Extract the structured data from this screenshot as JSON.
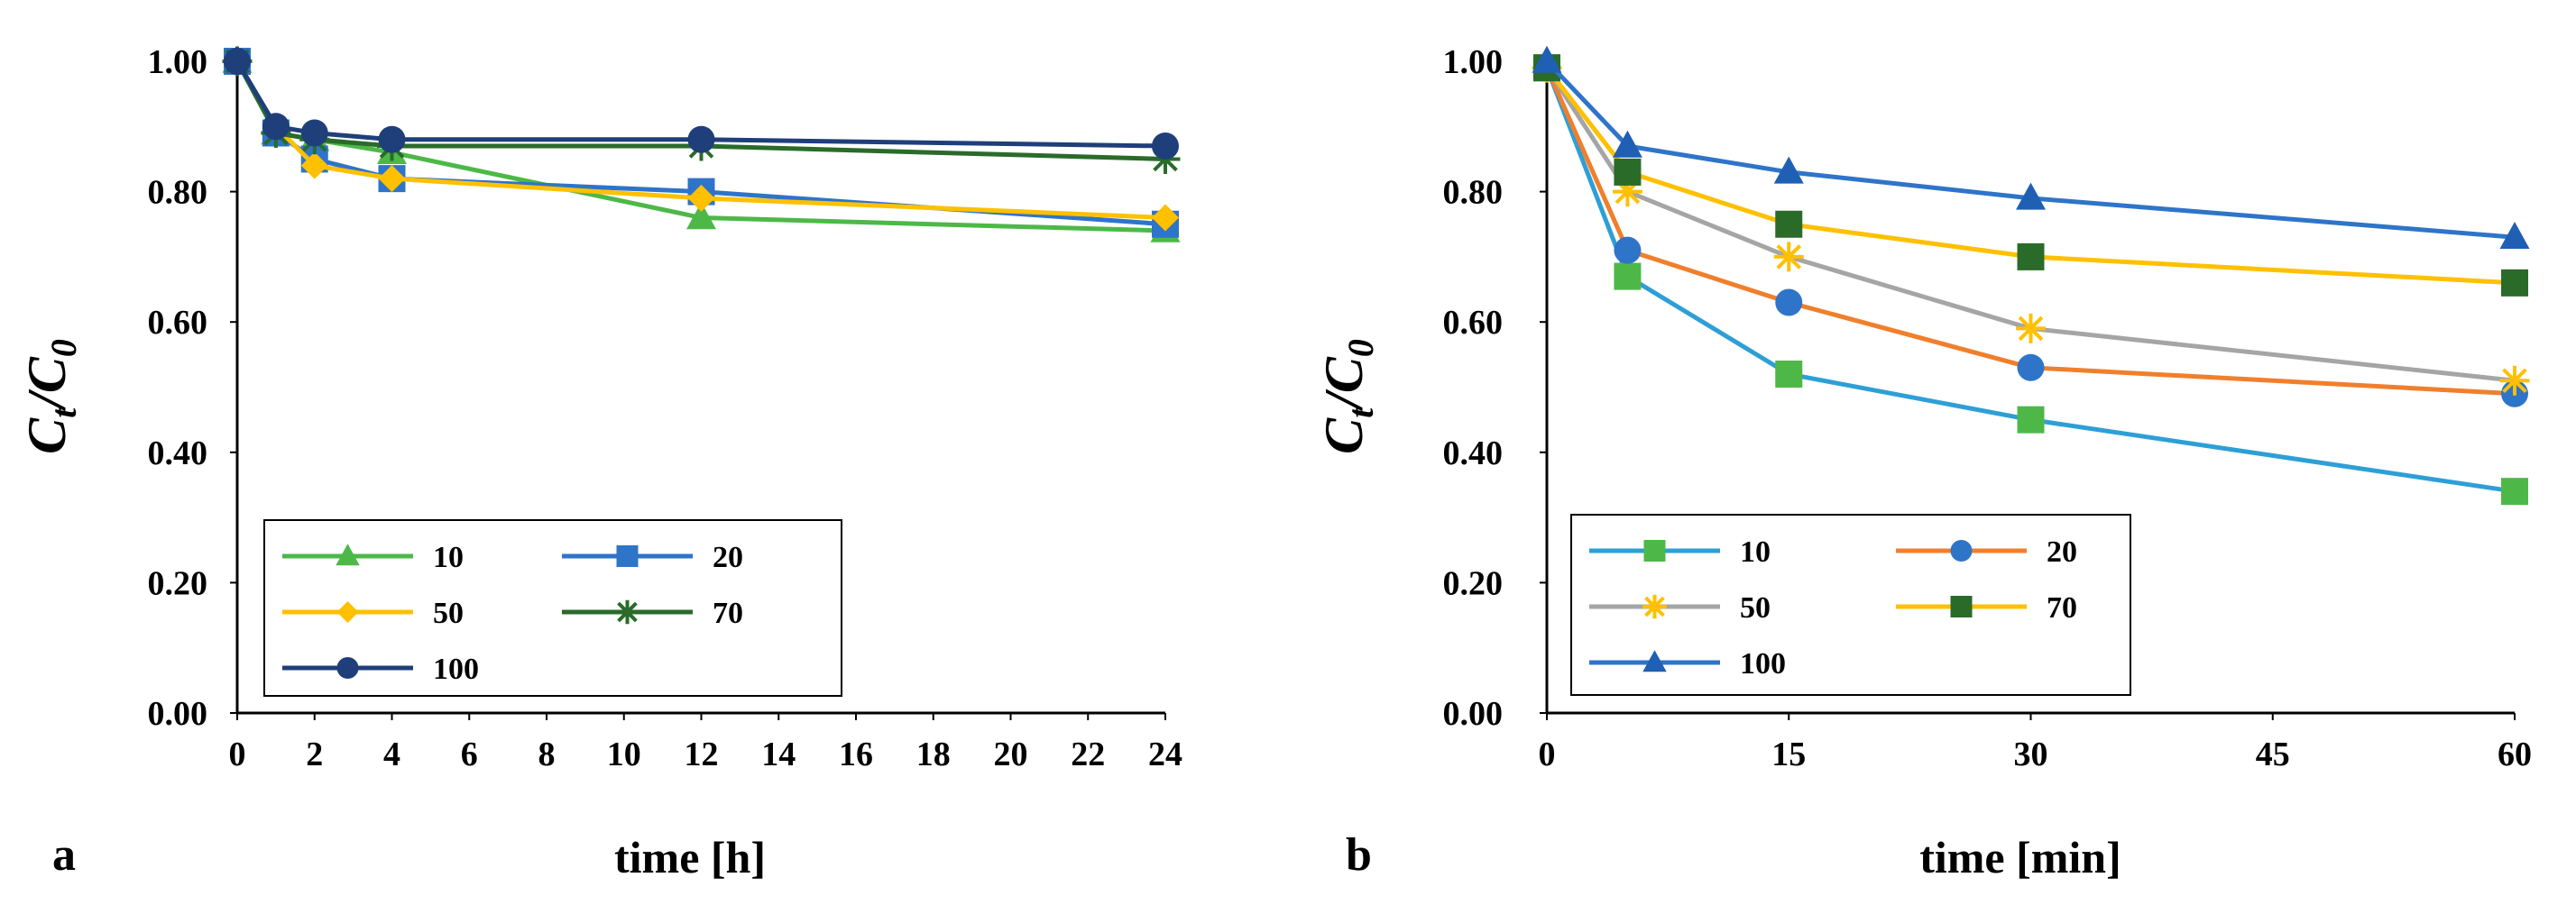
{
  "chart_data": [
    {
      "type": "line",
      "panel_label": "a",
      "xlabel": "time [h]",
      "ylabel_main": "C",
      "ylabel_sub1": "t",
      "ylabel_sep": "/C",
      "ylabel_sub2": "0",
      "xlim": [
        0,
        24
      ],
      "ylim": [
        0,
        1
      ],
      "x_ticks": [
        0,
        2,
        4,
        6,
        8,
        10,
        12,
        14,
        16,
        18,
        20,
        22,
        24
      ],
      "x_tick_labels": [
        "0",
        "2",
        "4",
        "6",
        "8",
        "10",
        "12",
        "14",
        "16",
        "18",
        "20",
        "22",
        "24"
      ],
      "y_ticks": [
        0,
        0.2,
        0.4,
        0.6,
        0.8,
        1.0
      ],
      "y_tick_labels": [
        "0.00",
        "0.20",
        "0.40",
        "0.60",
        "0.80",
        "1.00"
      ],
      "legend_position": "bottom-left",
      "legend_columns": 2,
      "x": [
        0,
        1,
        2,
        4,
        12,
        24
      ],
      "series": [
        {
          "name": "10",
          "color": "#4db848",
          "marker": "triangle",
          "values": [
            1.0,
            0.89,
            0.88,
            0.86,
            0.76,
            0.74
          ]
        },
        {
          "name": "20",
          "color": "#2e74c9",
          "marker": "square",
          "values": [
            1.0,
            0.89,
            0.85,
            0.82,
            0.8,
            0.75
          ]
        },
        {
          "name": "50",
          "color": "#ffc000",
          "marker": "diamond",
          "values": [
            1.0,
            0.9,
            0.84,
            0.82,
            0.79,
            0.76
          ]
        },
        {
          "name": "70",
          "color": "#2a6b2a",
          "marker": "star",
          "values": [
            1.0,
            0.89,
            0.88,
            0.87,
            0.87,
            0.85
          ]
        },
        {
          "name": "100",
          "color": "#1f3f7a",
          "marker": "circle",
          "values": [
            1.0,
            0.9,
            0.89,
            0.88,
            0.88,
            0.87
          ]
        }
      ]
    },
    {
      "type": "line",
      "panel_label": "b",
      "xlabel": "time [min]",
      "ylabel_main": "C",
      "ylabel_sub1": "t",
      "ylabel_sep": "/C",
      "ylabel_sub2": "0",
      "xlim": [
        0,
        60
      ],
      "ylim": [
        0,
        1
      ],
      "x_ticks": [
        0,
        15,
        30,
        45,
        60
      ],
      "x_tick_labels": [
        "0",
        "15",
        "30",
        "45",
        "60"
      ],
      "y_ticks": [
        0,
        0.2,
        0.4,
        0.6,
        0.8,
        1.0
      ],
      "y_tick_labels": [
        "0.00",
        "0.20",
        "0.40",
        "0.60",
        "0.80",
        "1.00"
      ],
      "legend_position": "bottom-left",
      "legend_columns": 2,
      "x": [
        0,
        5,
        15,
        30,
        60
      ],
      "series": [
        {
          "name": "10",
          "color": "#2e9fd6",
          "marker_color": "#4db848",
          "marker": "square",
          "values": [
            0.99,
            0.67,
            0.52,
            0.45,
            0.34
          ]
        },
        {
          "name": "20",
          "color": "#f07f2c",
          "marker_color": "#2e74c9",
          "marker": "circle",
          "values": [
            0.99,
            0.71,
            0.63,
            0.53,
            0.49
          ]
        },
        {
          "name": "50",
          "color": "#a5a5a5",
          "marker_color": "#ffc000",
          "marker": "star",
          "values": [
            0.99,
            0.8,
            0.7,
            0.59,
            0.51
          ]
        },
        {
          "name": "70",
          "color": "#ffc000",
          "marker_color": "#2a6b2a",
          "marker": "square",
          "values": [
            0.99,
            0.83,
            0.75,
            0.7,
            0.66
          ]
        },
        {
          "name": "100",
          "color": "#2e74c9",
          "marker_color": "#1f5fb4",
          "marker": "triangle",
          "values": [
            1.0,
            0.87,
            0.83,
            0.79,
            0.73
          ]
        }
      ]
    }
  ]
}
